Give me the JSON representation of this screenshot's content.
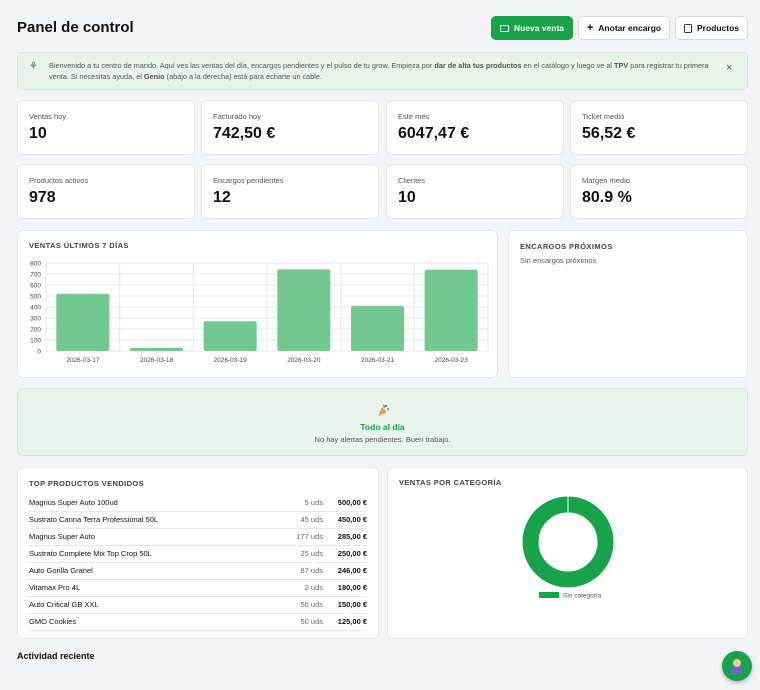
{
  "header": {
    "title": "Panel de control",
    "buttons": [
      "Nueva venta",
      "Anotar encargo",
      "Productos"
    ]
  },
  "banner": {
    "text": [
      "Bienvenido a tu centro de mando. Aquí ves las ventas del día, encargos pendientes y el pulso de tu grow. Empieza por ",
      "dar de alta tus productos",
      " en el catálogo y luego ve al ",
      "TPV",
      " para registrar tu primera venta. Si necesitas ayuda, el ",
      "Genio",
      " (abajo a la derecha) está para echarte un cable."
    ],
    "close": "×"
  },
  "kpis": [
    {
      "label": "Ventas hoy",
      "value": "10"
    },
    {
      "label": "Facturado hoy",
      "value": "742,50 €"
    },
    {
      "label": "Este mes",
      "value": "6047,47 €"
    },
    {
      "label": "Ticket medio",
      "value": "56,52 €"
    },
    {
      "label": "Productos activos",
      "value": "978"
    },
    {
      "label": "Encargos pendientes",
      "value": "12"
    },
    {
      "label": "Clientes",
      "value": "10"
    },
    {
      "label": "Margen medio",
      "value": "80.9 %"
    }
  ],
  "chart_data": [
    {
      "type": "bar",
      "title": "VENTAS ÚLTIMOS 7 DÍAS",
      "categories": [
        "2026-03-17",
        "2026-03-18",
        "2026-03-19",
        "2026-03-20",
        "2026-03-21",
        "2026-03-23"
      ],
      "values": [
        520,
        30,
        270,
        742.5,
        410,
        740
      ],
      "color": "#72c98f",
      "ylim": [
        0,
        800
      ],
      "yticks": [
        0,
        100,
        200,
        300,
        400,
        500,
        600,
        700,
        800
      ],
      "grid": true
    },
    {
      "type": "pie",
      "title": "VENTAS POR CATEGORÍA",
      "categories": [
        "Sin categoría"
      ],
      "values": [
        100
      ],
      "colors": [
        "#16a34a"
      ],
      "legend": "bottom"
    }
  ],
  "upcoming": {
    "title": "ENCARGOS PRÓXIMOS",
    "empty": "Sin encargos próximos"
  },
  "alerts": {
    "title": "Todo al día",
    "text": "No hay alertas pendientes. Buen trabajo."
  },
  "top_products": {
    "title": "TOP PRODUCTOS VENDIDOS",
    "rows": [
      [
        "Magnus Super Auto 100ud",
        "5 uds",
        "500,00 €"
      ],
      [
        "Sustrato Canna Terra Professional 50L",
        "45 uds",
        "450,00 €"
      ],
      [
        "Magnus Super Auto",
        "177 uds",
        "285,00 €"
      ],
      [
        "Sustrato Complete Mix Top Crop 50L",
        "25 uds",
        "250,00 €"
      ],
      [
        "Auto Gorilla Granel",
        "87 uds",
        "246,00 €"
      ],
      [
        "Vitamax Pro 4L",
        "2 uds",
        "180,00 €"
      ],
      [
        "Auto Critical GB XXL",
        "50 uds",
        "150,00 €"
      ],
      [
        "GMO Cookies",
        "50 uds",
        "125,00 €"
      ]
    ]
  },
  "activity": {
    "title": "Actividad reciente"
  }
}
